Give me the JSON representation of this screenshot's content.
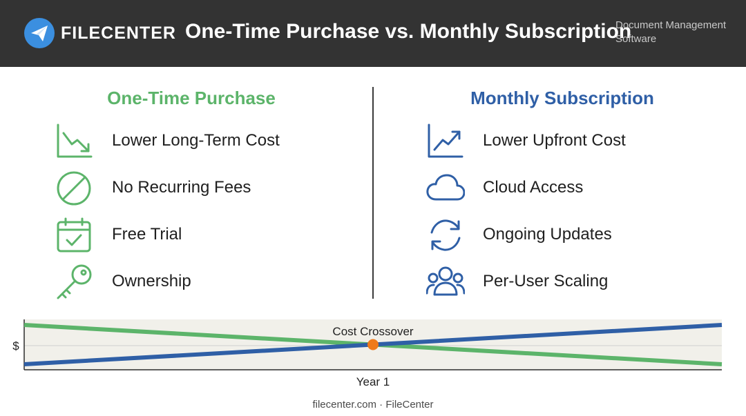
{
  "header": {
    "brand": "FILECENTER",
    "title": "One-Time Purchase vs. Monthly Subscription",
    "tagline_line1": "Document Management",
    "tagline_line2": "Software",
    "logo_icon": "paper-plane-icon"
  },
  "colors": {
    "header_bg": "#333333",
    "green": "#5cb46a",
    "blue": "#2f5fa6",
    "crossover": "#ef7a1a",
    "chart_bg": "#f1f0ea"
  },
  "left_column": {
    "heading": "One-Time Purchase",
    "features": [
      {
        "icon": "chart-trend-down-icon",
        "label": "Lower Long-Term Cost"
      },
      {
        "icon": "no-symbol-icon",
        "label": "No Recurring Fees"
      },
      {
        "icon": "calendar-check-icon",
        "label": "Free Trial"
      },
      {
        "icon": "key-icon",
        "label": "Ownership"
      }
    ]
  },
  "right_column": {
    "heading": "Monthly Subscription",
    "features": [
      {
        "icon": "chart-trend-up-icon",
        "label": "Lower Upfront Cost"
      },
      {
        "icon": "cloud-icon",
        "label": "Cloud Access"
      },
      {
        "icon": "refresh-icon",
        "label": "Ongoing Updates"
      },
      {
        "icon": "users-icon",
        "label": "Per-User Scaling"
      }
    ]
  },
  "chart_data": {
    "type": "line",
    "title": "",
    "xlabel": "Year 1",
    "ylabel": "$",
    "x": [
      0,
      1,
      2
    ],
    "xlim": [
      0,
      2
    ],
    "ylim": [
      0,
      10
    ],
    "grid": "horizontal",
    "legend": "none",
    "annotation": "Cost Crossover",
    "crossover": {
      "x": 1,
      "y": 5
    },
    "series": [
      {
        "color": "#5cb46a",
        "values": [
          8.9,
          5,
          1.1
        ]
      },
      {
        "color": "#2f5fa6",
        "values": [
          1.1,
          5,
          8.9
        ]
      }
    ]
  },
  "footer": {
    "text": "filecenter.com · FileCenter"
  }
}
